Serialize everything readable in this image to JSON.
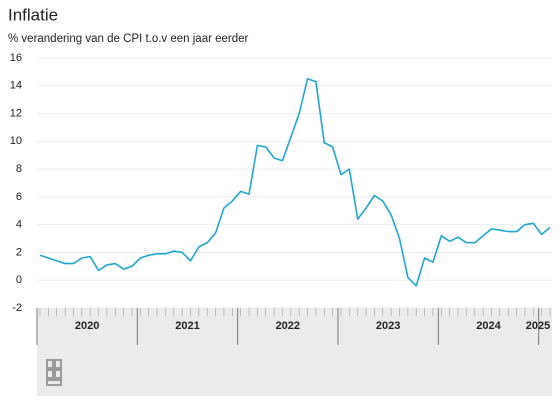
{
  "chart_data": {
    "type": "line",
    "title": "Inflatie",
    "subtitle": "% verandering van de CPI t.o.v een jaar eerder",
    "years": [
      "2020",
      "2021",
      "2022",
      "2023",
      "2024",
      "2025"
    ],
    "series": [
      {
        "color": "#1ba8d0",
        "values": [
          1.8,
          1.6,
          1.4,
          1.2,
          1.2,
          1.6,
          1.7,
          0.7,
          1.1,
          1.2,
          0.8,
          1.0,
          1.6,
          1.8,
          1.9,
          1.9,
          2.1,
          2.0,
          1.4,
          2.4,
          2.7,
          3.4,
          5.2,
          5.7,
          6.4,
          6.2,
          9.7,
          9.6,
          8.8,
          8.6,
          10.3,
          12.0,
          14.5,
          14.3,
          9.9,
          9.6,
          7.6,
          8.0,
          4.4,
          5.2,
          6.1,
          5.7,
          4.7,
          3.0,
          0.2,
          -0.4,
          1.6,
          1.3,
          3.2,
          2.8,
          3.1,
          2.7,
          2.7,
          3.2,
          3.7,
          3.6,
          3.5,
          3.5,
          4.0,
          4.1,
          3.3,
          3.8
        ]
      }
    ],
    "ylim": [
      -2,
      16
    ],
    "yticks": [
      -2,
      0,
      2,
      4,
      6,
      8,
      10,
      12,
      14,
      16
    ],
    "grid": true
  }
}
